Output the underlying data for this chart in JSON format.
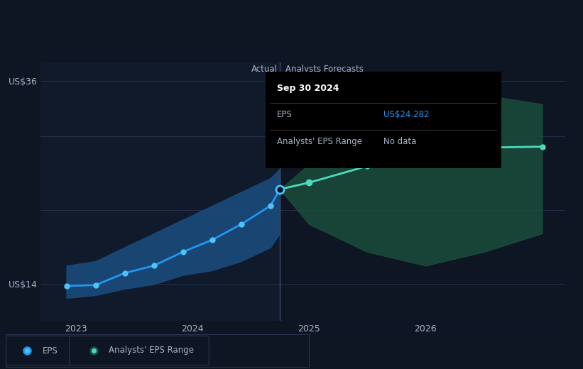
{
  "bg_color": "#0e1523",
  "plot_bg_color": "#0e1523",
  "actual_section_bg": "#131e30",
  "grid_color": "#2a3550",
  "text_color": "#aab4c8",
  "eps_line_color": "#2196f3",
  "eps_dot_color": "#4fc3f7",
  "forecast_line_color": "#4dd9c0",
  "forecast_dot_color": "#4dd9c0",
  "actual_band_color": "#1a4a7a",
  "forecast_band_color": "#1a4a3a",
  "divider_color": "#3a4a6a",
  "actual_label": "Actual",
  "forecast_label": "Analysts Forecasts",
  "legend_eps": "EPS",
  "legend_range": "Analysts' EPS Range",
  "tooltip_title": "Sep 30 2024",
  "tooltip_eps_label": "EPS",
  "tooltip_eps_value": "US$24.282",
  "tooltip_range_label": "Analysts' EPS Range",
  "tooltip_range_value": "No data",
  "tooltip_eps_color": "#2196f3",
  "ylim": [
    10,
    38
  ],
  "xlim": [
    2022.7,
    2027.2
  ],
  "divider_x": 2024.75,
  "actual_eps_x": [
    2022.92,
    2023.17,
    2023.42,
    2023.67,
    2023.92,
    2024.17,
    2024.42,
    2024.67,
    2024.75
  ],
  "actual_eps_y": [
    13.8,
    13.9,
    15.2,
    16.0,
    17.5,
    18.8,
    20.5,
    22.5,
    24.282
  ],
  "actual_band_upper": [
    16.0,
    16.5,
    18.0,
    19.5,
    21.0,
    22.5,
    24.0,
    25.5,
    26.5
  ],
  "actual_band_lower": [
    12.5,
    12.8,
    13.5,
    14.0,
    15.0,
    15.5,
    16.5,
    18.0,
    19.5
  ],
  "forecast_eps_x": [
    2024.75,
    2025.0,
    2025.5,
    2026.0,
    2026.5,
    2027.0
  ],
  "forecast_eps_y": [
    24.282,
    25.0,
    26.8,
    28.5,
    28.8,
    28.9
  ],
  "forecast_band_upper": [
    24.282,
    27.0,
    32.0,
    35.5,
    34.5,
    33.5
  ],
  "forecast_band_lower": [
    24.282,
    20.5,
    17.5,
    16.0,
    17.5,
    19.5
  ]
}
